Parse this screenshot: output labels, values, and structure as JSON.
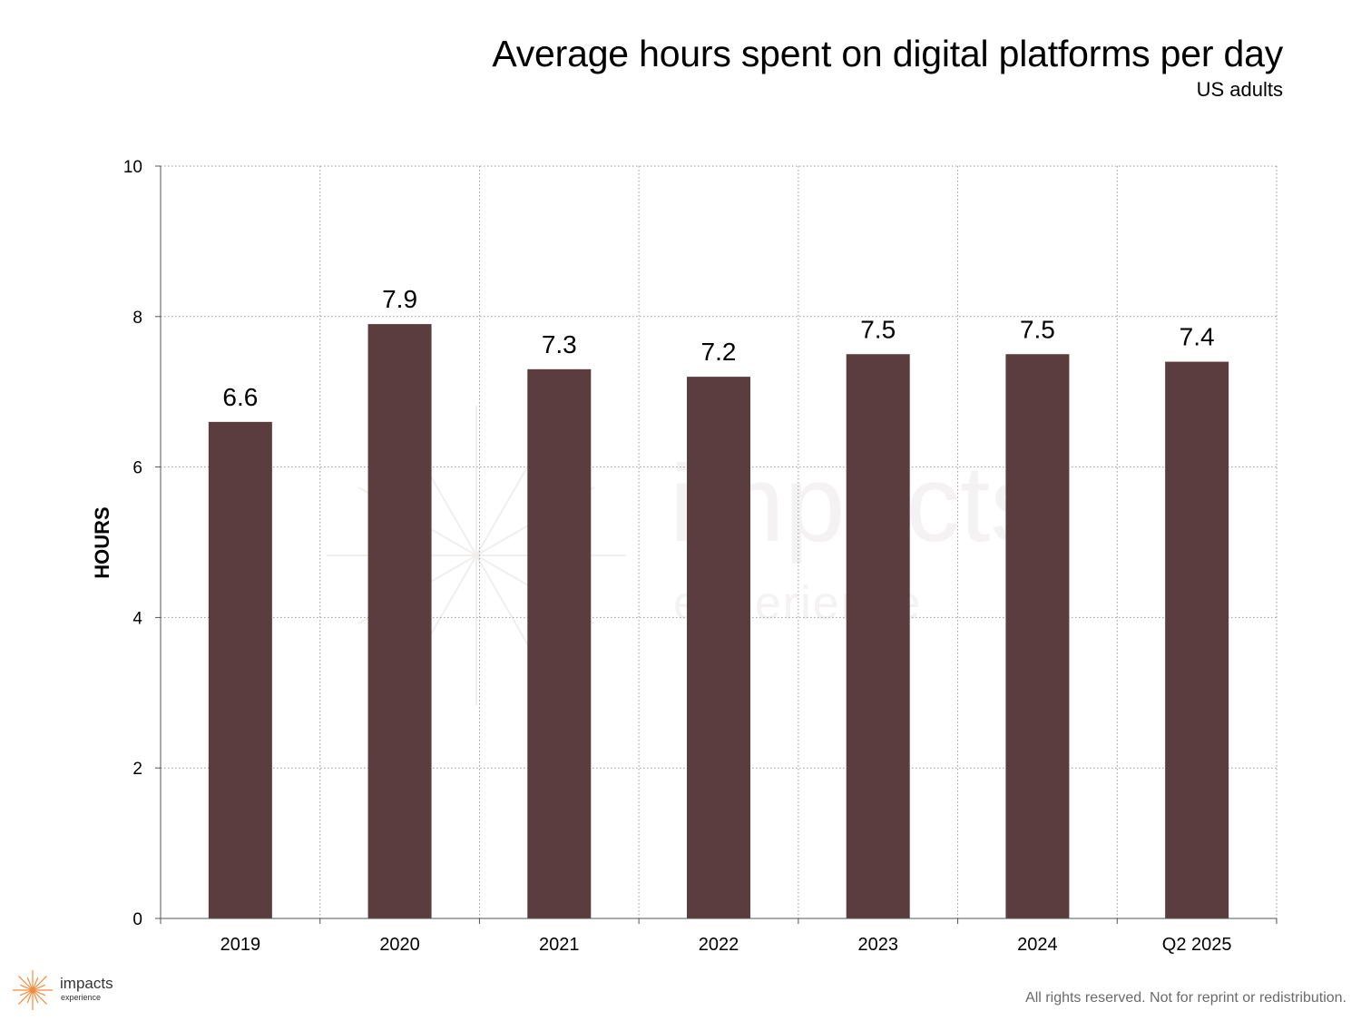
{
  "header": {
    "title": "Average hours spent on digital platforms per day",
    "subtitle": "US adults"
  },
  "footer": {
    "rights": "All rights reserved. Not for reprint or redistribution."
  },
  "logo": {
    "word": "impacts",
    "sub": "experience",
    "icon": "starburst-icon"
  },
  "watermark": {
    "word": "impacts",
    "sub": "experience"
  },
  "colors": {
    "bar": "#5c3d3f",
    "grid": "#9a9a9a",
    "logo_accent": "#f08a3c"
  },
  "chart_data": {
    "type": "bar",
    "title": "Average hours spent on digital platforms per day",
    "subtitle": "US adults",
    "xlabel": "",
    "ylabel": "HOURS",
    "categories": [
      "2019",
      "2020",
      "2021",
      "2022",
      "2023",
      "2024",
      "Q2 2025"
    ],
    "values": [
      6.6,
      7.9,
      7.3,
      7.2,
      7.5,
      7.5,
      7.4
    ],
    "value_labels": [
      "6.6",
      "7.9",
      "7.3",
      "7.2",
      "7.5",
      "7.5",
      "7.4"
    ],
    "ylim": [
      0,
      10
    ],
    "yticks": [
      0,
      2,
      4,
      6,
      8,
      10
    ],
    "ytick_labels": [
      "0",
      "2",
      "4",
      "6",
      "8",
      "10"
    ],
    "grid": true,
    "legend": "none"
  }
}
